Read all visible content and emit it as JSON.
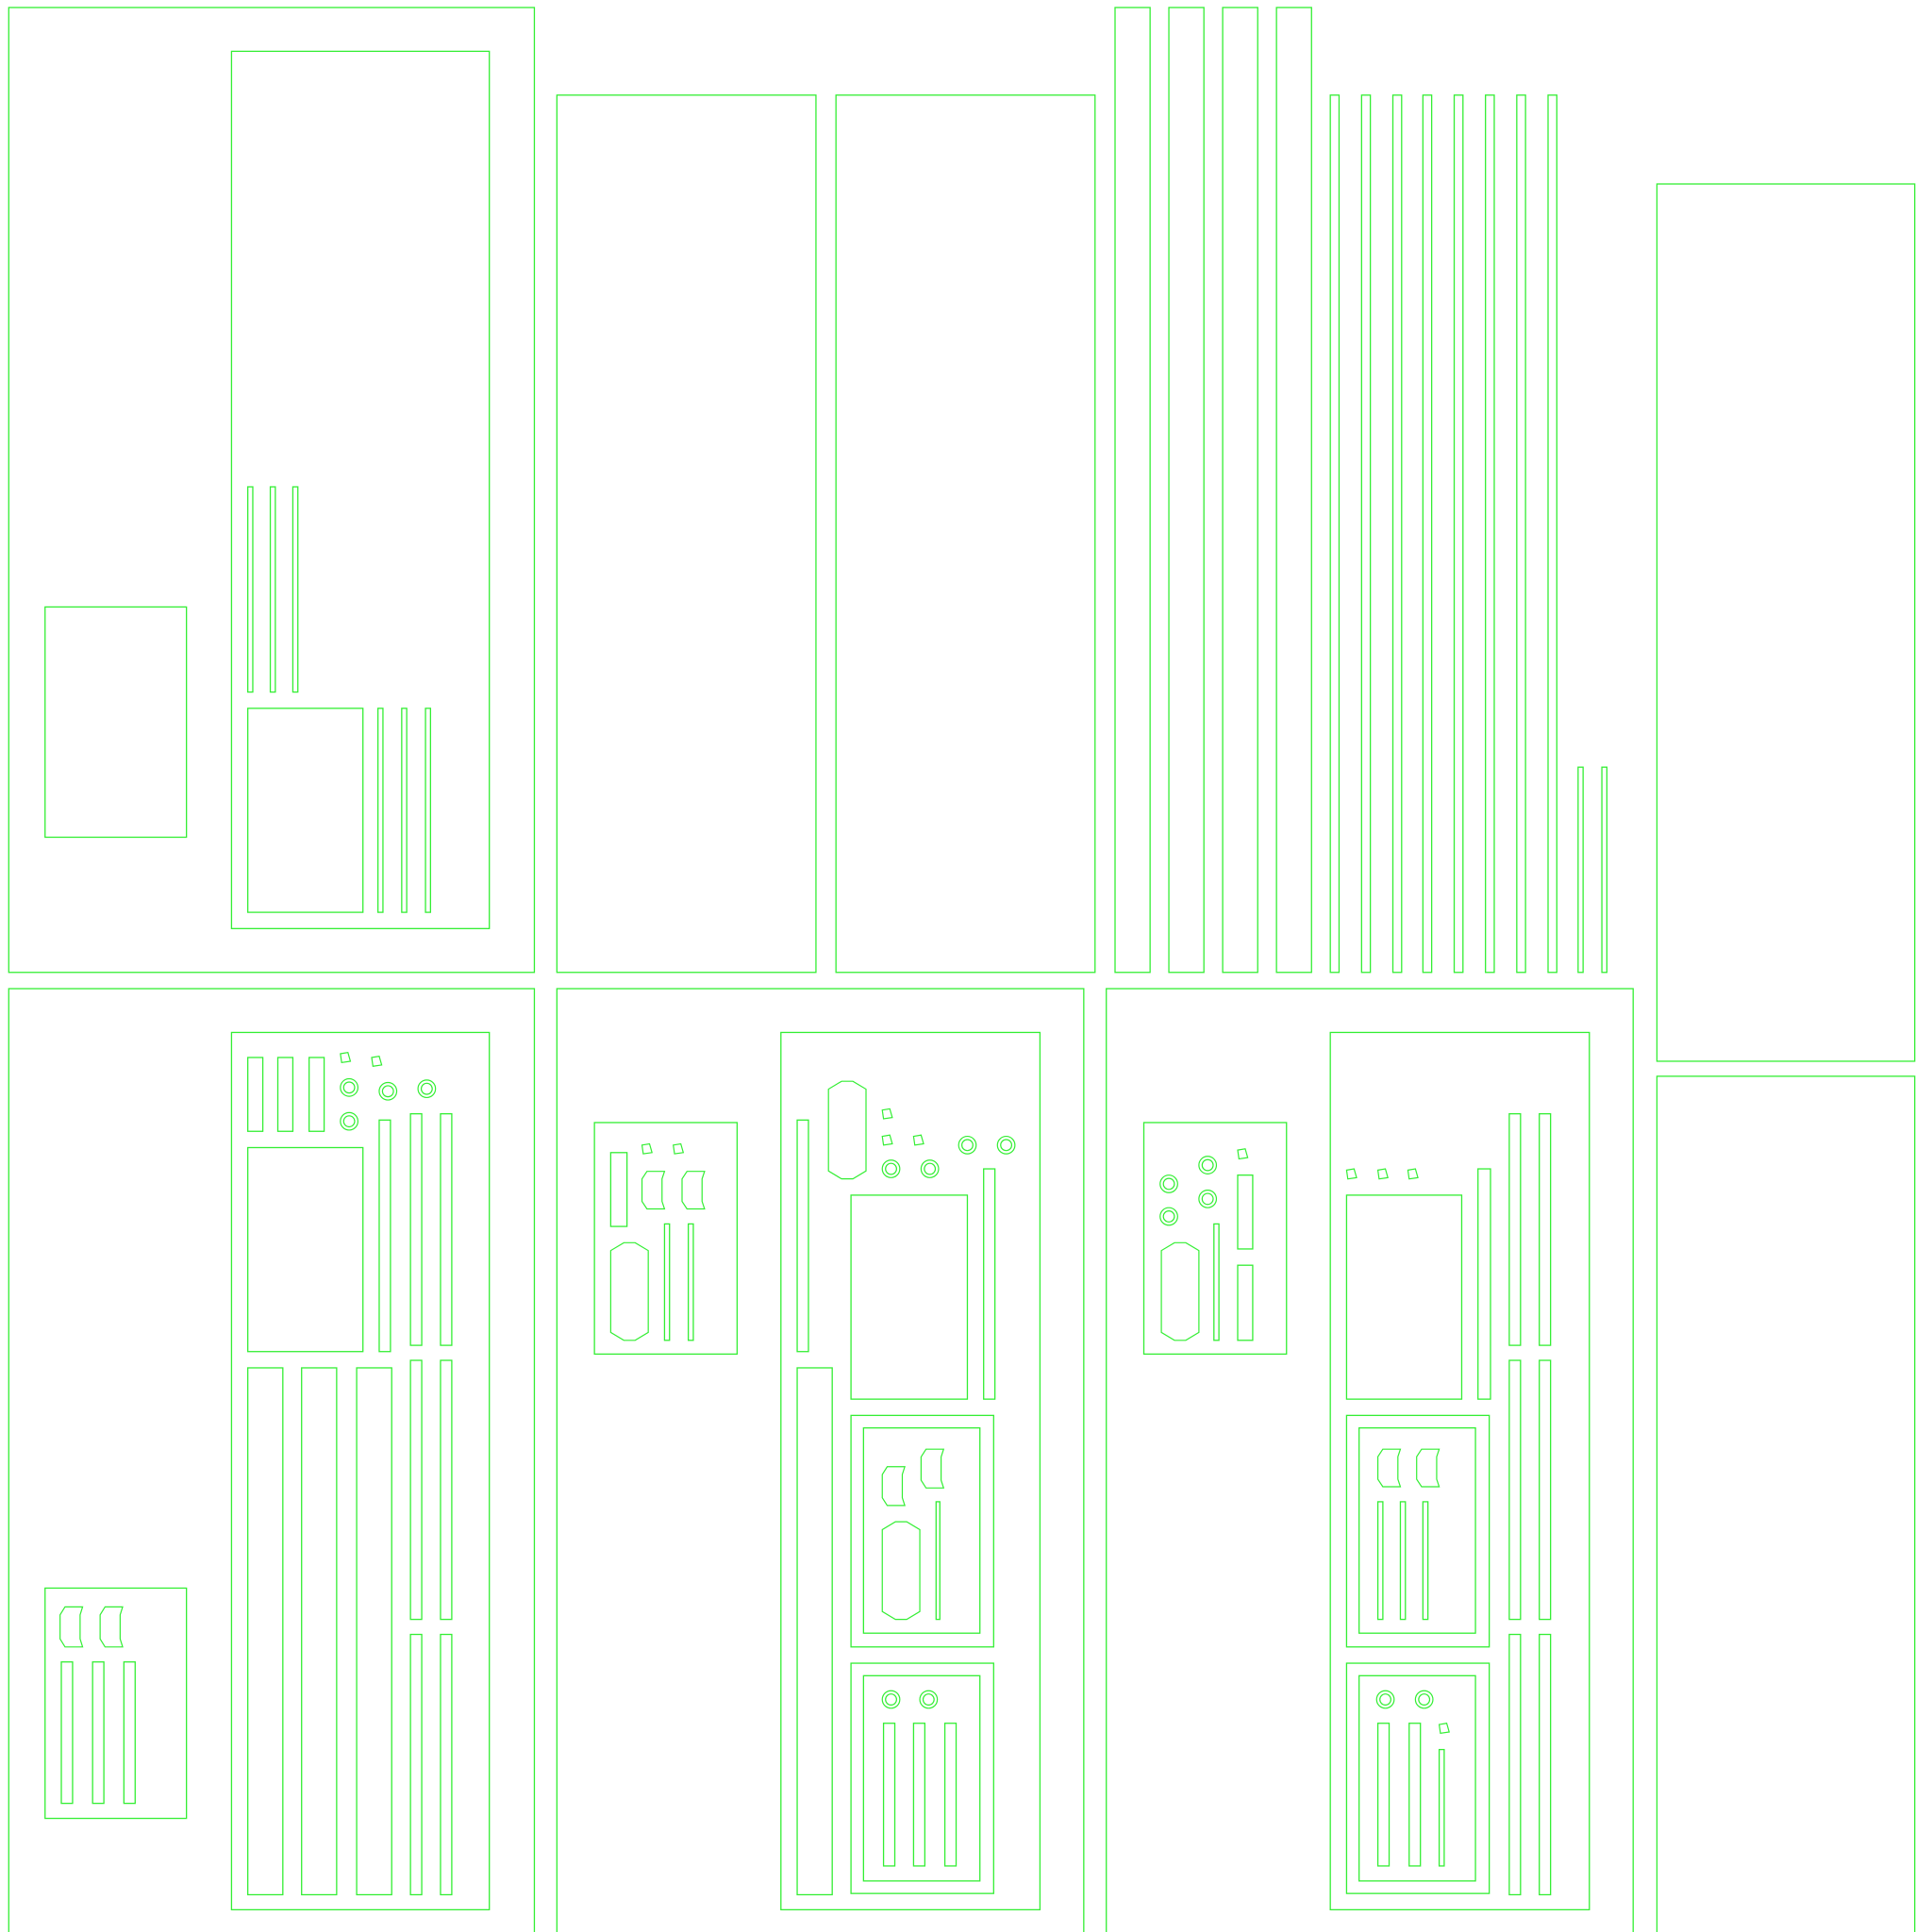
{
  "diagram": {
    "line_color": "#33ee33",
    "background_color": "#ffffff"
  }
}
